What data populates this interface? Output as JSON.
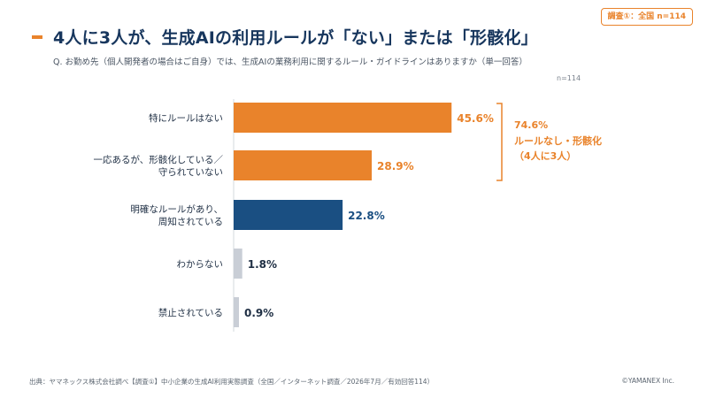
{
  "badge": "調査①：全国 n=114",
  "title": "4人に3人が、生成AIの利用ルールが「ない」または「形骸化」",
  "subtitle": "Q. お勤め先（個人開発者の場合はご自身）では、生成AIの業務利用に関するルール・ガイドラインはありますか（単一回答）",
  "n_label": "n=114",
  "chart_data": {
    "type": "bar",
    "orientation": "horizontal",
    "categories": [
      [
        "特にルールはない"
      ],
      [
        "一応あるが、形骸化している／",
        "守られていない"
      ],
      [
        "明確なルールがあり、",
        "周知されている"
      ],
      [
        "わからない"
      ],
      [
        "禁止されている"
      ]
    ],
    "values": [
      45.6,
      28.9,
      22.8,
      1.8,
      0.9
    ],
    "value_labels": [
      "45.6%",
      "28.9%",
      "22.8%",
      "1.8%",
      "0.9%"
    ],
    "bar_colors": [
      "#e9832b",
      "#e9832b",
      "#1a4f82",
      "#c9ced6",
      "#c9ced6"
    ],
    "label_colors": [
      "#e9832b",
      "#e9832b",
      "#1a4f82",
      "#1f2f44",
      "#1f2f44"
    ],
    "annotation": {
      "lines": [
        "74.6%",
        "ルールなし・形骸化",
        "（4人に3人）"
      ],
      "color": "#e9832b",
      "covers_categories": [
        0,
        1
      ]
    }
  },
  "footer": {
    "source": "出典：ヤマネックス株式会社調べ【調査①】中小企業の生成AI利用実態調査（全国／インターネット調査／2026年7月／有効回答114）",
    "copyright": "©YAMANEX Inc."
  }
}
